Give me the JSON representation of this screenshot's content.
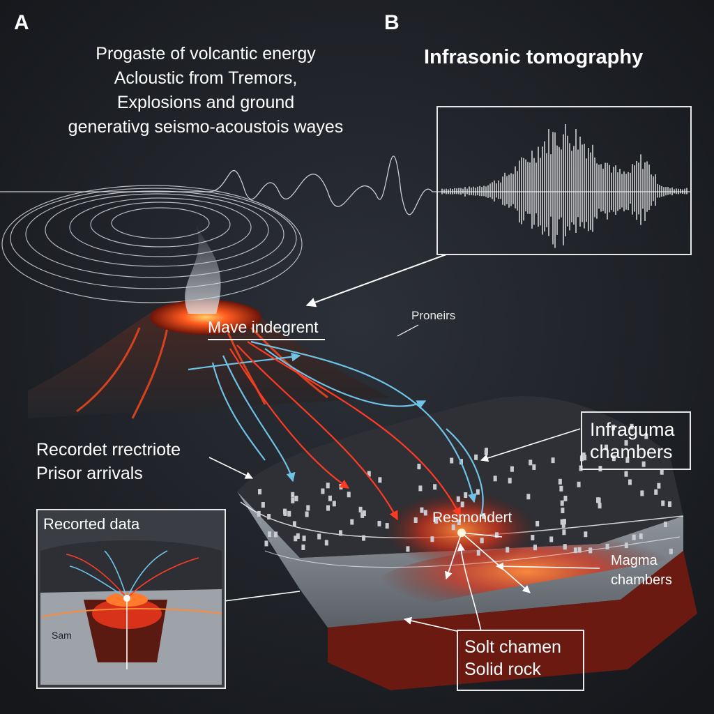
{
  "panels": {
    "a": "A",
    "b": "B"
  },
  "intro_lines": [
    "Progaste of volcantic energy",
    "Acloustic from Tremors,",
    "Explosions and ground",
    "generativg seismo-acoustois wayes"
  ],
  "title_b": "Infrasonic tomography",
  "labels": {
    "wave": "Mave indegrent",
    "proneirs": "Proneirs",
    "recorded_line1": "Recordet rrectriote",
    "recorded_line2": "Prisor arrivals",
    "infraguma_line1": "Infraguma",
    "infraguma_line2": "chambers",
    "resmondert": "Resmondert",
    "magma_line1": "Magma",
    "magma_line2": "chambers",
    "solt_line1": "Solt chamen",
    "solt_line2": "Solid rock",
    "inset_title": "Recorted data",
    "inset_sam": "Sam"
  },
  "colors": {
    "background": "#1b1d22",
    "lava": "#ff4a1c",
    "blue_ray": "#6ec3e6",
    "red_ray": "#ff3b24",
    "crust_gray": "#8a9097",
    "magma_red": "#6b1a12"
  }
}
